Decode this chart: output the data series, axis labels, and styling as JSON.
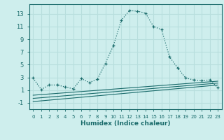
{
  "xlabel": "Humidex (Indice chaleur)",
  "ylabel": "",
  "background_color": "#ceeeed",
  "grid_color": "#b8dedd",
  "line_color": "#1a6b6b",
  "x_values": [
    0,
    1,
    2,
    3,
    4,
    5,
    6,
    7,
    8,
    9,
    10,
    11,
    12,
    13,
    14,
    15,
    16,
    17,
    18,
    19,
    20,
    21,
    22,
    23
  ],
  "series1": [
    2.9,
    1.1,
    1.8,
    1.8,
    1.5,
    1.2,
    2.8,
    2.2,
    2.7,
    5.2,
    8.0,
    12.0,
    13.5,
    13.4,
    13.1,
    11.0,
    10.5,
    6.2,
    4.5,
    2.9,
    2.6,
    2.5,
    2.6,
    1.4
  ],
  "series2_x": [
    0,
    23
  ],
  "series2": [
    -0.8,
    1.8
  ],
  "series3_x": [
    0,
    23
  ],
  "series3": [
    -0.3,
    2.1
  ],
  "series4_x": [
    0,
    23
  ],
  "series4": [
    0.2,
    2.4
  ],
  "xlim": [
    -0.5,
    23.5
  ],
  "ylim": [
    -2.0,
    14.5
  ],
  "yticks": [
    -1,
    1,
    3,
    5,
    7,
    9,
    11,
    13
  ],
  "xticks": [
    0,
    1,
    2,
    3,
    4,
    5,
    6,
    7,
    8,
    9,
    10,
    11,
    12,
    13,
    14,
    15,
    16,
    17,
    18,
    19,
    20,
    21,
    22,
    23
  ]
}
